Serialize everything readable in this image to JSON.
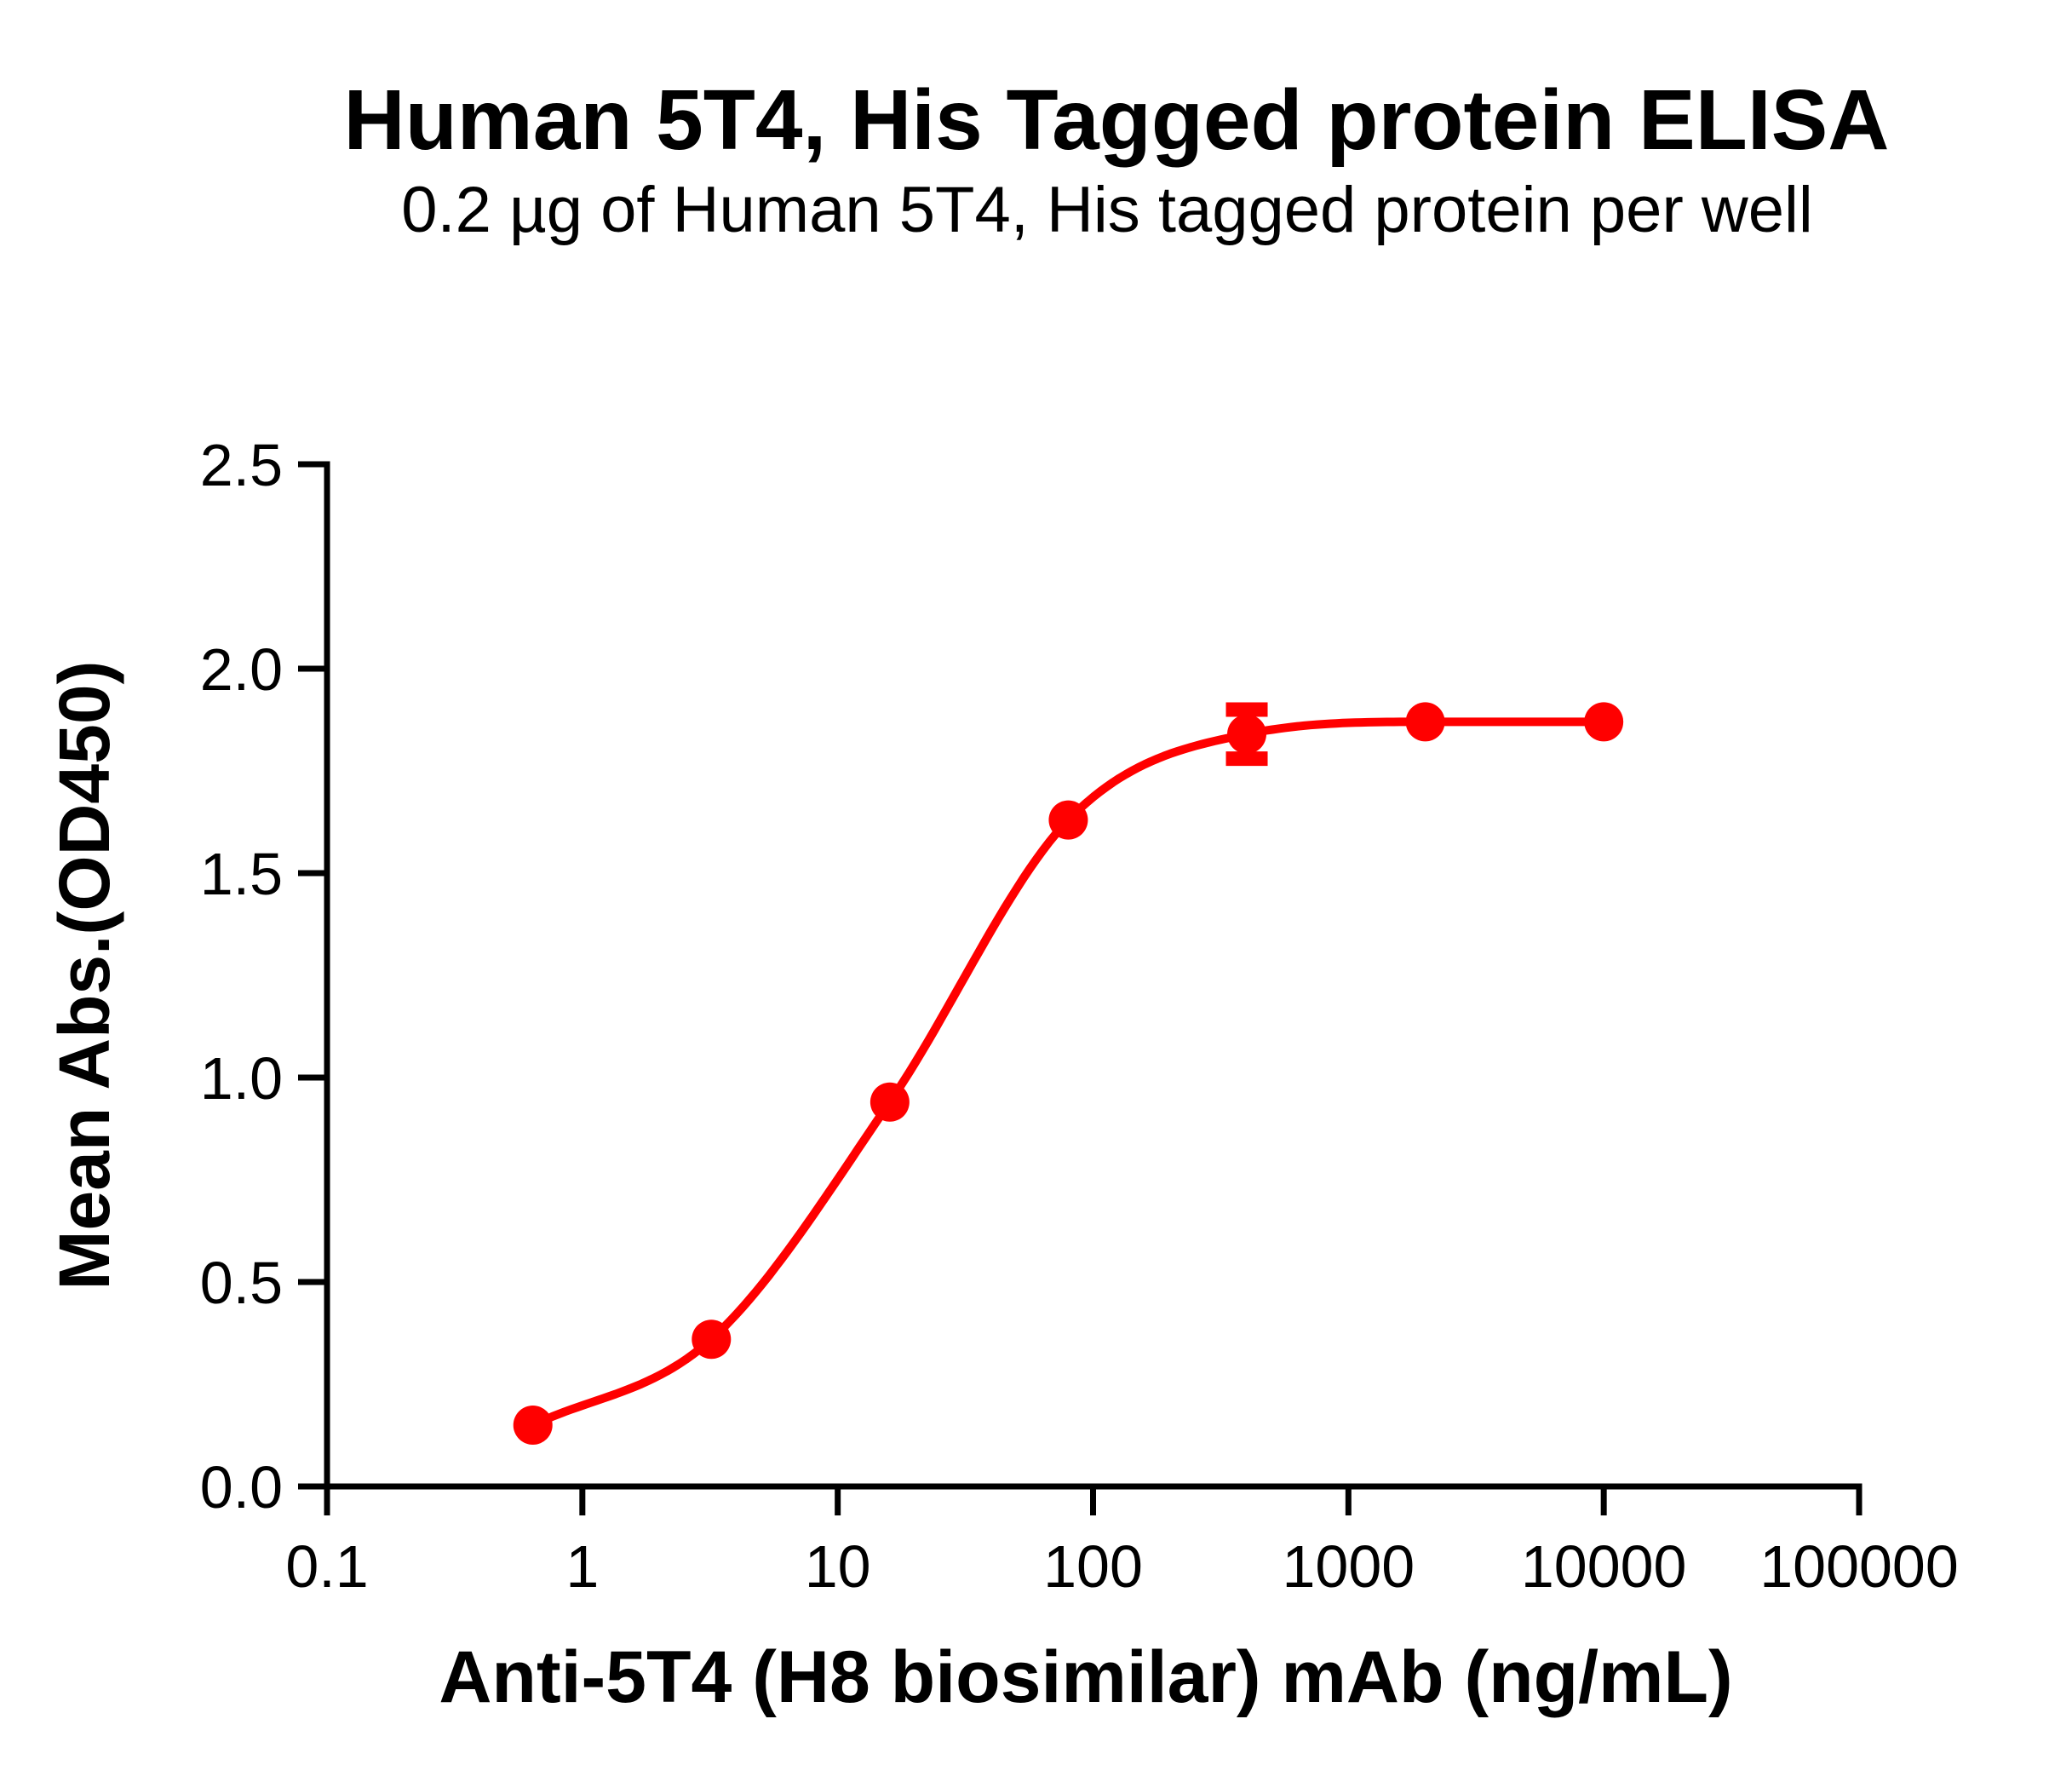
{
  "chart_data": {
    "type": "line",
    "title": "Human 5T4, His Tagged protein ELISA",
    "subtitle": "0.2 µg of Human 5T4, His tagged protein per well",
    "xlabel": "Anti-5T4 (H8 biosimilar) mAb (ng/mL)",
    "ylabel": "Mean Abs.(OD450)",
    "x_scale": "log10",
    "xlim": [
      0.1,
      100000
    ],
    "ylim": [
      0,
      2.5
    ],
    "x_ticks": [
      0.1,
      1,
      10,
      100,
      1000,
      10000,
      100000
    ],
    "x_tick_labels": [
      "0.1",
      "1",
      "10",
      "100",
      "1000",
      "10000",
      "100000"
    ],
    "y_ticks": [
      0.0,
      0.5,
      1.0,
      1.5,
      2.0,
      2.5
    ],
    "y_tick_labels": [
      "0.0",
      "0.5",
      "1.0",
      "1.5",
      "2.0",
      "2.5"
    ],
    "grid": false,
    "legend": "none",
    "series": [
      {
        "name": "Anti-5T4 (H8 biosimilar) mAb",
        "color": "#FF0000",
        "marker": "circle",
        "x": [
          0.64,
          3.2,
          16,
          80,
          400,
          2000,
          10000
        ],
        "y": [
          0.15,
          0.36,
          0.94,
          1.63,
          1.84,
          1.87,
          1.87
        ],
        "y_sd": [
          0,
          0,
          0,
          0,
          0.06,
          0,
          0
        ]
      }
    ],
    "colors": {
      "series": "#FF0000",
      "axis": "#000000",
      "background": "#FFFFFF"
    }
  }
}
